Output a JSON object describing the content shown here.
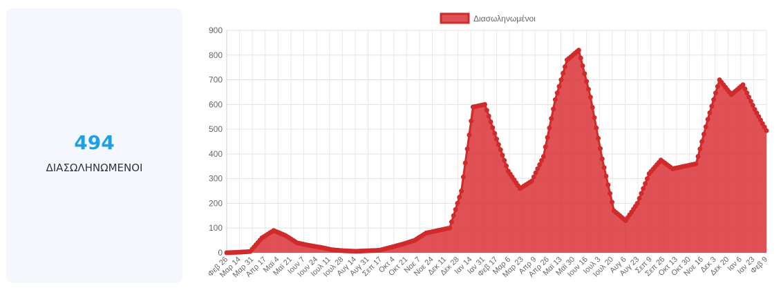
{
  "stat": {
    "value": "494",
    "label": "ΔΙΑΣΩΛΗΝΩΜΕΝΟΙ"
  },
  "colors": {
    "accent": "#1ea0e6",
    "series_fill": "#d92b2f",
    "series_line": "#d12a2a",
    "card_bg": "#f4f8fe"
  },
  "chart_data": {
    "type": "area",
    "title": "",
    "xlabel": "",
    "ylabel": "",
    "ylim": [
      0,
      900
    ],
    "yticks": [
      0,
      100,
      200,
      300,
      400,
      500,
      600,
      700,
      800,
      900
    ],
    "grid": true,
    "legend_position": "top",
    "x_tick_labels": [
      "Φεβ 26",
      "Μαρ 14",
      "Μαρ 31",
      "Απρ 17",
      "Μαϊ 4",
      "Μαϊ 21",
      "Ιουν 7",
      "Ιουν 24",
      "Ιουλ 11",
      "Ιουλ 28",
      "Αυγ 14",
      "Αυγ 31",
      "Σεπ 17",
      "Οκτ 4",
      "Οκτ 21",
      "Νοε 7",
      "Νοε 24",
      "Δεκ 11",
      "Δεκ 28",
      "Ιαν 14",
      "Ιαν 31",
      "Φεβ 17",
      "Μαρ 6",
      "Μαρ 23",
      "Απρ 9",
      "Απρ 26",
      "Μαϊ 13",
      "Μαϊ 30",
      "Ιουν 16",
      "Ιουλ 3",
      "Ιουλ 20",
      "Αυγ 6",
      "Αυγ 23",
      "Σεπ 9",
      "Σεπ 26",
      "Οκτ 13",
      "Οκτ 30",
      "Νοε 16",
      "Δεκ 3",
      "Δεκ 20",
      "Ιαν 6",
      "Ιαν 23",
      "Φεβ 9"
    ],
    "series": [
      {
        "name": "Διασωληνωμένοι",
        "values": [
          0,
          2,
          5,
          60,
          90,
          70,
          40,
          30,
          22,
          12,
          8,
          6,
          8,
          10,
          22,
          35,
          50,
          80,
          90,
          100,
          250,
          590,
          600,
          460,
          330,
          260,
          290,
          390,
          620,
          780,
          820,
          630,
          380,
          170,
          130,
          200,
          320,
          375,
          340,
          350,
          360,
          540,
          700,
          640,
          680,
          580,
          494
        ]
      }
    ]
  }
}
